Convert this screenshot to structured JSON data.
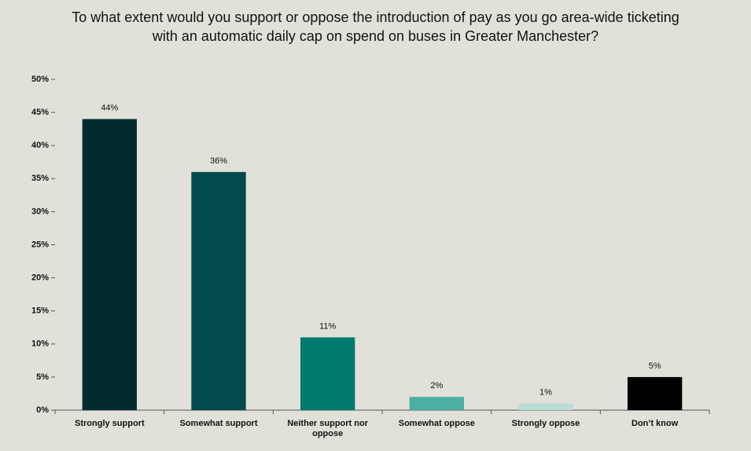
{
  "chart_data": {
    "type": "bar",
    "title": "To what extent would you support or oppose the introduction of pay as you go area-wide ticketing with an automatic daily cap on spend on buses in Greater Manchester?",
    "categories": [
      "Strongly support",
      "Somewhat support",
      "Neither support nor oppose",
      "Somewhat oppose",
      "Strongly oppose",
      "Don’t know"
    ],
    "values": [
      44,
      36,
      11,
      2,
      1,
      5
    ],
    "value_labels": [
      "44%",
      "36%",
      "11%",
      "2%",
      "1%",
      "5%"
    ],
    "colors": [
      "#012b2e",
      "#024a4d",
      "#007a6c",
      "#4cafa5",
      "#b9ddd8",
      "#000000"
    ],
    "ylim": [
      0,
      50
    ],
    "yticks": [
      {
        "value": 0,
        "label": "0%"
      },
      {
        "value": 5,
        "label": "5%"
      },
      {
        "value": 10,
        "label": "10%"
      },
      {
        "value": 15,
        "label": "15%"
      },
      {
        "value": 20,
        "label": "20%"
      },
      {
        "value": 25,
        "label": "25%"
      },
      {
        "value": 30,
        "label": "30%"
      },
      {
        "value": 35,
        "label": "35%"
      },
      {
        "value": 40,
        "label": "40%"
      },
      {
        "value": 45,
        "label": "45%"
      },
      {
        "value": 50,
        "label": "50%"
      }
    ],
    "grid": false
  }
}
